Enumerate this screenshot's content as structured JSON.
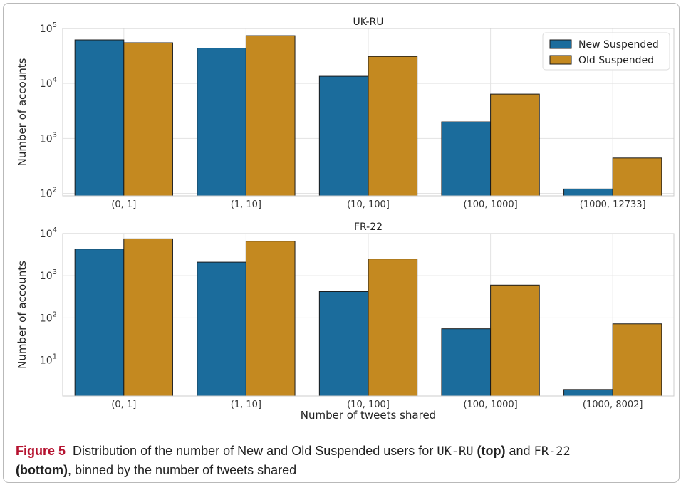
{
  "chart_data": [
    {
      "type": "bar",
      "title": "UK-RU",
      "ylabel": "Number of accounts",
      "xlabel": "",
      "yscale": "log",
      "ylim": [
        90,
        100000
      ],
      "categories": [
        "(0, 1]",
        "(1, 10]",
        "(10, 100]",
        "(100, 1000]",
        "(1000, 12733]"
      ],
      "series": [
        {
          "name": "New Suspended",
          "values": [
            62000,
            44000,
            13500,
            2000,
            120
          ]
        },
        {
          "name": "Old Suspended",
          "values": [
            55000,
            74000,
            31000,
            6400,
            440
          ]
        }
      ],
      "yticks": [
        {
          "base": "10",
          "exp": "2",
          "value": 100
        },
        {
          "base": "10",
          "exp": "3",
          "value": 1000
        },
        {
          "base": "10",
          "exp": "4",
          "value": 10000
        },
        {
          "base": "10",
          "exp": "5",
          "value": 100000
        }
      ],
      "legend": {
        "placement": "top-right",
        "entries": [
          "New Suspended",
          "Old Suspended"
        ]
      },
      "grid": true
    },
    {
      "type": "bar",
      "title": "FR-22",
      "ylabel": "Number of accounts",
      "xlabel": "Number of tweets shared",
      "yscale": "log",
      "ylim": [
        1.4,
        10000
      ],
      "categories": [
        "(0, 1]",
        "(1, 10]",
        "(10, 100]",
        "(100, 1000]",
        "(1000, 8002]"
      ],
      "series": [
        {
          "name": "New Suspended",
          "values": [
            4300,
            2100,
            420,
            55,
            2
          ]
        },
        {
          "name": "Old Suspended",
          "values": [
            7500,
            6600,
            2500,
            600,
            72
          ]
        }
      ],
      "yticks": [
        {
          "base": "10",
          "exp": "1",
          "value": 10
        },
        {
          "base": "10",
          "exp": "2",
          "value": 100
        },
        {
          "base": "10",
          "exp": "3",
          "value": 1000
        },
        {
          "base": "10",
          "exp": "4",
          "value": 10000
        }
      ],
      "grid": true
    }
  ],
  "colors": {
    "new_suspended": "#1b6c9c",
    "old_suspended": "#c48920",
    "grid": "#e3e3e3",
    "axis": "#cccccc",
    "caption_label": "#b5122f"
  },
  "caption": {
    "label": "Figure 5",
    "text_1": "Distribution of the number of New and Old Suspended users for",
    "code_1": "UK-RU",
    "bold_1": "(top)",
    "text_2": "and",
    "code_2": "FR-22",
    "bold_2": "(bottom)",
    "text_3": ", binned by the number of tweets shared"
  }
}
